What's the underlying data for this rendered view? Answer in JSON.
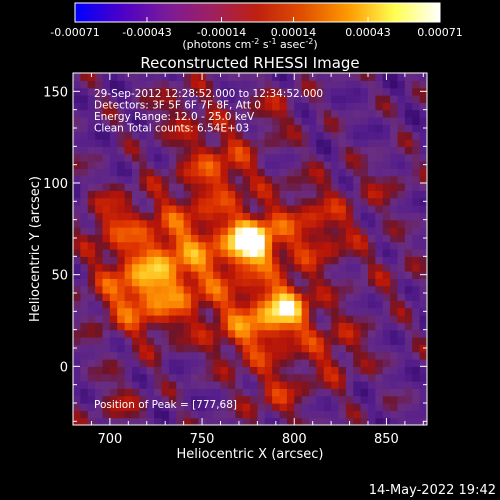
{
  "colorbar": {
    "tick_labels": [
      "-0.00071",
      "-0.00043",
      "-0.00014",
      "0.00014",
      "0.00043",
      "0.00071"
    ],
    "tick_values": [
      -0.00071,
      -0.00043,
      -0.00014,
      0.00014,
      0.00043,
      0.00071
    ],
    "range": [
      -0.00071,
      0.00071
    ],
    "unit_main": "(photons cm",
    "unit_exp1": "-2",
    "unit_mid1": " s",
    "unit_exp2": "-1",
    "unit_mid2": " asec",
    "unit_exp3": "-2",
    "unit_end": ")",
    "colors": [
      "#0000ff",
      "#4a00c8",
      "#7a1a9a",
      "#9e2060",
      "#c02010",
      "#e05000",
      "#ff9a00",
      "#ffff50",
      "#ffffff"
    ]
  },
  "footer": {
    "timestamp": "14-May-2022 19:42"
  },
  "chart_data": {
    "type": "heatmap",
    "title": "Reconstructed RHESSI Image",
    "xlabel": "Heliocentric X (arcsec)",
    "ylabel": "Heliocentric Y (arcsec)",
    "xlim": [
      680,
      872
    ],
    "ylim": [
      -32,
      160
    ],
    "xticks": [
      700,
      750,
      800,
      850
    ],
    "yticks": [
      0,
      50,
      100,
      150
    ],
    "info_lines": [
      "29-Sep-2012 12:28:52.000 to 12:34:52.000",
      "Detectors: 3F 5F 6F 7F 8F, Att 0",
      "Energy Range: 12.0 - 25.0 keV",
      "Clean     Total counts: 6.54E+03"
    ],
    "peak_label": "Position of Peak = [777,68]",
    "peak": [
      777,
      68
    ],
    "sources": [
      {
        "x": 777,
        "y": 68,
        "amp": 1.0,
        "sigma": 9
      },
      {
        "x": 795,
        "y": 32,
        "amp": 0.72,
        "sigma": 10
      },
      {
        "x": 740,
        "y": 60,
        "amp": 0.55,
        "sigma": 24
      },
      {
        "x": 715,
        "y": 40,
        "amp": 0.45,
        "sigma": 16
      },
      {
        "x": 760,
        "y": 110,
        "amp": 0.4,
        "sigma": 14
      },
      {
        "x": 810,
        "y": 75,
        "amp": 0.38,
        "sigma": 18
      },
      {
        "x": 775,
        "y": 20,
        "amp": 0.45,
        "sigma": 14
      },
      {
        "x": 820,
        "y": 10,
        "amp": 0.3,
        "sigma": 14
      },
      {
        "x": 790,
        "y": -15,
        "amp": 0.28,
        "sigma": 12
      },
      {
        "x": 705,
        "y": -20,
        "amp": 0.2,
        "sigma": 10
      },
      {
        "x": 700,
        "y": 80,
        "amp": 0.3,
        "sigma": 10
      },
      {
        "x": 740,
        "y": 140,
        "amp": 0.22,
        "sigma": 12
      },
      {
        "x": 790,
        "y": 140,
        "amp": 0.22,
        "sigma": 10
      },
      {
        "x": 850,
        "y": 100,
        "amp": 0.15,
        "sigma": 10
      },
      {
        "x": 855,
        "y": 50,
        "amp": 0.12,
        "sigma": 12
      }
    ]
  }
}
